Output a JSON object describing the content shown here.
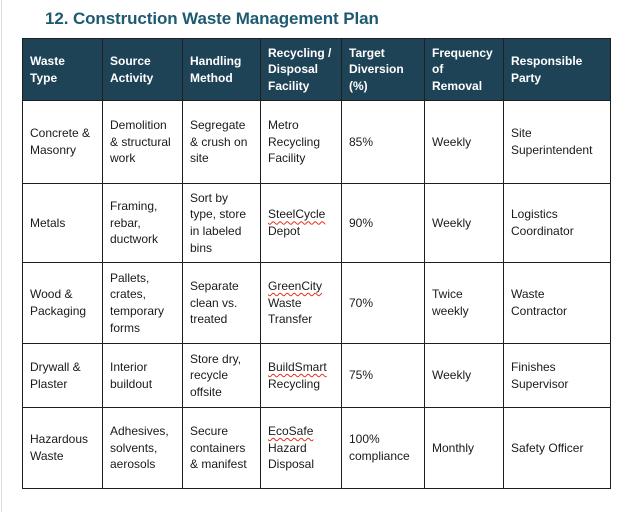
{
  "page": {
    "title": "12. Construction Waste Management Plan"
  },
  "colors": {
    "title_text": "#1e5a70",
    "header_background": "#1f4356",
    "header_text": "#ffffff",
    "body_text": "#1a1a1a",
    "table_border": "#1f1f1f",
    "spellcheck_underline": "#e0301e"
  },
  "table": {
    "columns": [
      {
        "label": "Waste Type"
      },
      {
        "label": "Source Activity"
      },
      {
        "label": "Handling Method"
      },
      {
        "label": "Recycling / Disposal Facility"
      },
      {
        "label": "Target Diversion (%)"
      },
      {
        "label": "Frequency of Removal"
      },
      {
        "label": "Responsible Party"
      }
    ],
    "rows": [
      {
        "type": "Concrete & Masonry",
        "source": "Demolition & structural work",
        "handling": "Segregate & crush on site",
        "facility_flagged": "",
        "facility_rest": "Metro Recycling Facility",
        "diversion": "85%",
        "frequency": "Weekly",
        "responsible": "Site Superintendent"
      },
      {
        "type": "Metals",
        "source": "Framing, rebar, ductwork",
        "handling": "Sort by type, store in labeled bins",
        "facility_flagged": "SteelCycle",
        "facility_rest": " Depot",
        "diversion": "90%",
        "frequency": "Weekly",
        "responsible": "Logistics Coordinator"
      },
      {
        "type": "Wood & Packaging",
        "source": "Pallets, crates, temporary forms",
        "handling": "Separate clean vs. treated",
        "facility_flagged": "GreenCity",
        "facility_rest": " Waste Transfer",
        "diversion": "70%",
        "frequency": "Twice weekly",
        "responsible": "Waste Contractor"
      },
      {
        "type": "Drywall & Plaster",
        "source": "Interior buildout",
        "handling": "Store dry, recycle offsite",
        "facility_flagged": "BuildSmart",
        "facility_rest": " Recycling",
        "diversion": "75%",
        "frequency": "Weekly",
        "responsible": "Finishes Supervisor"
      },
      {
        "type": "Hazardous Waste",
        "source": "Adhesives, solvents, aerosols",
        "handling": "Secure containers & manifest",
        "facility_flagged": "EcoSafe",
        "facility_rest": " Hazard Disposal",
        "diversion": "100% compliance",
        "frequency": "Monthly",
        "responsible": "Safety Officer"
      }
    ]
  }
}
